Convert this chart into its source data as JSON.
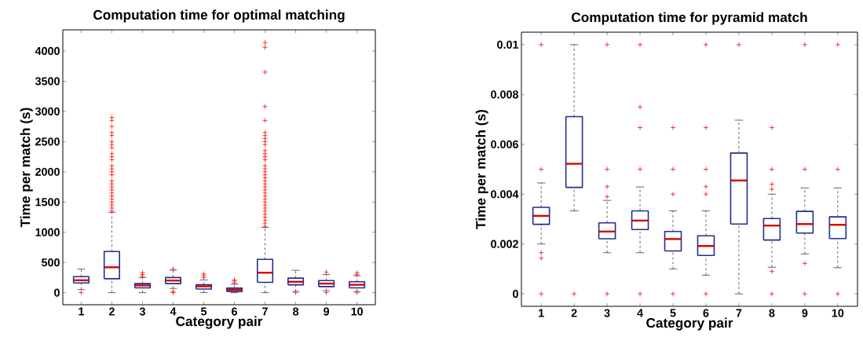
{
  "chart_data": [
    {
      "type": "box",
      "title": "Computation time for optimal matching",
      "xlabel": "Category pair",
      "ylabel": "Time per match (s)",
      "categories": [
        "1",
        "2",
        "3",
        "4",
        "5",
        "6",
        "7",
        "8",
        "9",
        "10"
      ],
      "ylim": [
        -200,
        4350
      ],
      "yticks": [
        0,
        500,
        1000,
        1500,
        2000,
        2500,
        3000,
        3500,
        4000
      ],
      "series": [
        {
          "color": "#1f2f8f",
          "boxes": [
            {
              "low": 50,
              "q1": 160,
              "median": 205,
              "q3": 265,
              "high": 390,
              "outliers": [
                0
              ]
            },
            {
              "low": 0,
              "q1": 230,
              "median": 420,
              "q3": 680,
              "high": 1330,
              "outliers": [
                1350,
                1400,
                1450,
                1500,
                1550,
                1600,
                1650,
                1700,
                1750,
                1800,
                1850,
                1950,
                2000,
                2050,
                2100,
                2200,
                2250,
                2300,
                2400,
                2450,
                2500,
                2600,
                2650,
                2750,
                2850,
                2900
              ]
            },
            {
              "low": 0,
              "q1": 80,
              "median": 120,
              "q3": 150,
              "high": 250,
              "outliers": [
                270,
                300,
                330
              ]
            },
            {
              "low": 70,
              "q1": 150,
              "median": 200,
              "q3": 250,
              "high": 370,
              "outliers": [
                0,
                20,
                390
              ]
            },
            {
              "low": 0,
              "q1": 60,
              "median": 105,
              "q3": 130,
              "high": 210,
              "outliers": [
                250,
                280,
                310
              ]
            },
            {
              "low": 0,
              "q1": 20,
              "median": 50,
              "q3": 75,
              "high": 140,
              "outliers": [
                160,
                190,
                210
              ]
            },
            {
              "low": 0,
              "q1": 170,
              "median": 330,
              "q3": 550,
              "high": 1080,
              "outliers": [
                1100,
                1150,
                1200,
                1250,
                1300,
                1350,
                1400,
                1450,
                1500,
                1550,
                1600,
                1650,
                1700,
                1750,
                1800,
                1850,
                1900,
                1950,
                2000,
                2050,
                2100,
                2200,
                2250,
                2300,
                2350,
                2450,
                2500,
                2550,
                2600,
                2650,
                2850,
                3080,
                3650,
                4060,
                4140
              ]
            },
            {
              "low": 20,
              "q1": 130,
              "median": 180,
              "q3": 240,
              "high": 370,
              "outliers": [
                0
              ]
            },
            {
              "low": 30,
              "q1": 100,
              "median": 150,
              "q3": 200,
              "high": 300,
              "outliers": [
                0,
                340
              ]
            },
            {
              "low": 20,
              "q1": 80,
              "median": 130,
              "q3": 180,
              "high": 280,
              "outliers": [
                0,
                300,
                330
              ]
            }
          ]
        }
      ]
    },
    {
      "type": "box",
      "title": "Computation time for pyramid match",
      "xlabel": "Category pair",
      "ylabel": "Time per match (s)",
      "categories": [
        "1",
        "2",
        "3",
        "4",
        "5",
        "6",
        "7",
        "8",
        "9",
        "10"
      ],
      "ylim": [
        -0.0005,
        0.0105
      ],
      "yticks": [
        0,
        0.002,
        0.004,
        0.006,
        0.008,
        0.01
      ],
      "series": [
        {
          "color": "#1f2f8f",
          "boxes": [
            {
              "low": 0.002,
              "q1": 0.00279,
              "median": 0.00313,
              "q3": 0.00347,
              "high": 0.00445,
              "outliers": [
                0,
                0.00143,
                0.00165,
                0.005,
                0.01
              ]
            },
            {
              "low": 0.00333,
              "q1": 0.00427,
              "median": 0.00522,
              "q3": 0.00711,
              "high": 0.01,
              "outliers": [
                0
              ]
            },
            {
              "low": 0.00165,
              "q1": 0.00221,
              "median": 0.0025,
              "q3": 0.00285,
              "high": 0.00375,
              "outliers": [
                0,
                0.0039,
                0.0043,
                0.005,
                0.01
              ]
            },
            {
              "low": 0.00165,
              "q1": 0.00258,
              "median": 0.00294,
              "q3": 0.00333,
              "high": 0.00429,
              "outliers": [
                0,
                0.005,
                0.00667,
                0.0075,
                0.01
              ]
            },
            {
              "low": 0.001,
              "q1": 0.00172,
              "median": 0.0022,
              "q3": 0.0025,
              "high": 0.00333,
              "outliers": [
                0,
                0.004,
                0.005,
                0.00667
              ]
            },
            {
              "low": 0.00075,
              "q1": 0.00154,
              "median": 0.00192,
              "q3": 0.00233,
              "high": 0.00333,
              "outliers": [
                0,
                0.004,
                0.0043,
                0.005,
                0.00667,
                0.01
              ]
            },
            {
              "low": 0,
              "q1": 0.0028,
              "median": 0.00455,
              "q3": 0.00565,
              "high": 0.00697,
              "outliers": [
                0.01
              ]
            },
            {
              "low": 0.00107,
              "q1": 0.00216,
              "median": 0.00274,
              "q3": 0.00302,
              "high": 0.004,
              "outliers": [
                0,
                0.0009,
                0.0042,
                0.0044,
                0.005,
                0.00667
              ]
            },
            {
              "low": 0.0016,
              "q1": 0.00244,
              "median": 0.0028,
              "q3": 0.00331,
              "high": 0.00425,
              "outliers": [
                0,
                0.00122,
                0.005,
                0.01
              ]
            },
            {
              "low": 0.00105,
              "q1": 0.00222,
              "median": 0.00277,
              "q3": 0.00309,
              "high": 0.00425,
              "outliers": [
                0,
                0.005,
                0.01
              ]
            }
          ]
        }
      ]
    }
  ]
}
